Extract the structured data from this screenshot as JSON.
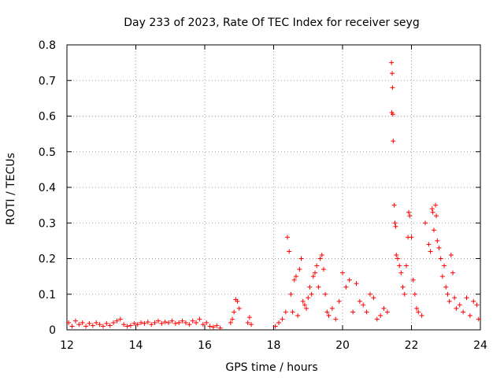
{
  "chart_data": {
    "type": "scatter",
    "title": "Day 233 of 2023, Rate Of TEC Index for receiver seyg",
    "xlabel": "GPS time / hours",
    "ylabel": "ROTI / TECUs",
    "xlim": [
      12,
      24
    ],
    "ylim": [
      0,
      0.8
    ],
    "x_ticks": [
      "12",
      "14",
      "16",
      "18",
      "20",
      "22",
      "24"
    ],
    "y_ticks": [
      "0",
      "0.1",
      "0.2",
      "0.3",
      "0.4",
      "0.5",
      "0.6",
      "0.7",
      "0.8"
    ],
    "grid": true,
    "marker": "+",
    "series_color": "#ff0000",
    "series": [
      {
        "points": [
          [
            12.05,
            0.02
          ],
          [
            12.15,
            0.01
          ],
          [
            12.25,
            0.025
          ],
          [
            12.35,
            0.015
          ],
          [
            12.45,
            0.02
          ],
          [
            12.55,
            0.01
          ],
          [
            12.65,
            0.018
          ],
          [
            12.75,
            0.012
          ],
          [
            12.85,
            0.02
          ],
          [
            12.95,
            0.015
          ],
          [
            13.05,
            0.01
          ],
          [
            13.15,
            0.018
          ],
          [
            13.25,
            0.012
          ],
          [
            13.35,
            0.02
          ],
          [
            13.45,
            0.025
          ],
          [
            13.55,
            0.03
          ],
          [
            13.65,
            0.015
          ],
          [
            13.75,
            0.01
          ],
          [
            13.85,
            0.012
          ],
          [
            13.95,
            0.018
          ],
          [
            14.05,
            0.015
          ],
          [
            14.15,
            0.02
          ],
          [
            14.25,
            0.018
          ],
          [
            14.35,
            0.022
          ],
          [
            14.45,
            0.015
          ],
          [
            14.55,
            0.02
          ],
          [
            14.65,
            0.025
          ],
          [
            14.75,
            0.018
          ],
          [
            14.85,
            0.022
          ],
          [
            14.95,
            0.02
          ],
          [
            15.05,
            0.025
          ],
          [
            15.15,
            0.018
          ],
          [
            15.25,
            0.02
          ],
          [
            15.35,
            0.025
          ],
          [
            15.45,
            0.02
          ],
          [
            15.55,
            0.015
          ],
          [
            15.65,
            0.025
          ],
          [
            15.75,
            0.02
          ],
          [
            15.85,
            0.03
          ],
          [
            15.95,
            0.015
          ],
          [
            16.05,
            0.02
          ],
          [
            16.15,
            0.01
          ],
          [
            16.25,
            0.008
          ],
          [
            16.35,
            0.012
          ],
          [
            16.45,
            0.005
          ],
          [
            16.75,
            0.02
          ],
          [
            16.8,
            0.03
          ],
          [
            16.85,
            0.05
          ],
          [
            16.9,
            0.085
          ],
          [
            16.95,
            0.08
          ],
          [
            17.0,
            0.06
          ],
          [
            17.25,
            0.02
          ],
          [
            17.3,
            0.035
          ],
          [
            17.35,
            0.015
          ],
          [
            18.05,
            0.01
          ],
          [
            18.15,
            0.02
          ],
          [
            18.25,
            0.03
          ],
          [
            18.35,
            0.05
          ],
          [
            18.4,
            0.26
          ],
          [
            18.45,
            0.22
          ],
          [
            18.5,
            0.1
          ],
          [
            18.55,
            0.05
          ],
          [
            18.6,
            0.14
          ],
          [
            18.65,
            0.15
          ],
          [
            18.7,
            0.04
          ],
          [
            18.75,
            0.17
          ],
          [
            18.8,
            0.2
          ],
          [
            18.85,
            0.08
          ],
          [
            18.9,
            0.07
          ],
          [
            18.95,
            0.06
          ],
          [
            19.0,
            0.09
          ],
          [
            19.05,
            0.12
          ],
          [
            19.1,
            0.1
          ],
          [
            19.15,
            0.15
          ],
          [
            19.2,
            0.16
          ],
          [
            19.25,
            0.18
          ],
          [
            19.3,
            0.12
          ],
          [
            19.35,
            0.2
          ],
          [
            19.4,
            0.21
          ],
          [
            19.45,
            0.17
          ],
          [
            19.5,
            0.1
          ],
          [
            19.55,
            0.05
          ],
          [
            19.6,
            0.04
          ],
          [
            19.7,
            0.06
          ],
          [
            19.8,
            0.03
          ],
          [
            19.9,
            0.08
          ],
          [
            20.0,
            0.16
          ],
          [
            20.1,
            0.12
          ],
          [
            20.2,
            0.14
          ],
          [
            20.3,
            0.05
          ],
          [
            20.4,
            0.13
          ],
          [
            20.5,
            0.08
          ],
          [
            20.6,
            0.07
          ],
          [
            20.7,
            0.05
          ],
          [
            20.8,
            0.1
          ],
          [
            20.9,
            0.09
          ],
          [
            21.0,
            0.03
          ],
          [
            21.1,
            0.04
          ],
          [
            21.2,
            0.06
          ],
          [
            21.3,
            0.05
          ],
          [
            21.42,
            0.75
          ],
          [
            21.44,
            0.72
          ],
          [
            21.45,
            0.68
          ],
          [
            21.43,
            0.61
          ],
          [
            21.46,
            0.605
          ],
          [
            21.47,
            0.53
          ],
          [
            21.5,
            0.35
          ],
          [
            21.52,
            0.3
          ],
          [
            21.54,
            0.29
          ],
          [
            21.56,
            0.21
          ],
          [
            21.6,
            0.2
          ],
          [
            21.65,
            0.18
          ],
          [
            21.7,
            0.16
          ],
          [
            21.75,
            0.12
          ],
          [
            21.8,
            0.1
          ],
          [
            21.85,
            0.18
          ],
          [
            21.9,
            0.26
          ],
          [
            21.92,
            0.33
          ],
          [
            21.95,
            0.32
          ],
          [
            22.0,
            0.26
          ],
          [
            22.05,
            0.14
          ],
          [
            22.1,
            0.1
          ],
          [
            22.15,
            0.06
          ],
          [
            22.2,
            0.05
          ],
          [
            22.3,
            0.04
          ],
          [
            22.4,
            0.3
          ],
          [
            22.5,
            0.24
          ],
          [
            22.55,
            0.22
          ],
          [
            22.6,
            0.34
          ],
          [
            22.62,
            0.33
          ],
          [
            22.65,
            0.28
          ],
          [
            22.7,
            0.35
          ],
          [
            22.72,
            0.32
          ],
          [
            22.75,
            0.25
          ],
          [
            22.8,
            0.23
          ],
          [
            22.85,
            0.2
          ],
          [
            22.9,
            0.15
          ],
          [
            22.95,
            0.18
          ],
          [
            23.0,
            0.12
          ],
          [
            23.05,
            0.1
          ],
          [
            23.1,
            0.08
          ],
          [
            23.15,
            0.21
          ],
          [
            23.2,
            0.16
          ],
          [
            23.25,
            0.09
          ],
          [
            23.3,
            0.06
          ],
          [
            23.4,
            0.07
          ],
          [
            23.5,
            0.05
          ],
          [
            23.6,
            0.09
          ],
          [
            23.7,
            0.04
          ],
          [
            23.8,
            0.08
          ],
          [
            23.9,
            0.07
          ],
          [
            23.95,
            0.03
          ]
        ]
      }
    ]
  }
}
